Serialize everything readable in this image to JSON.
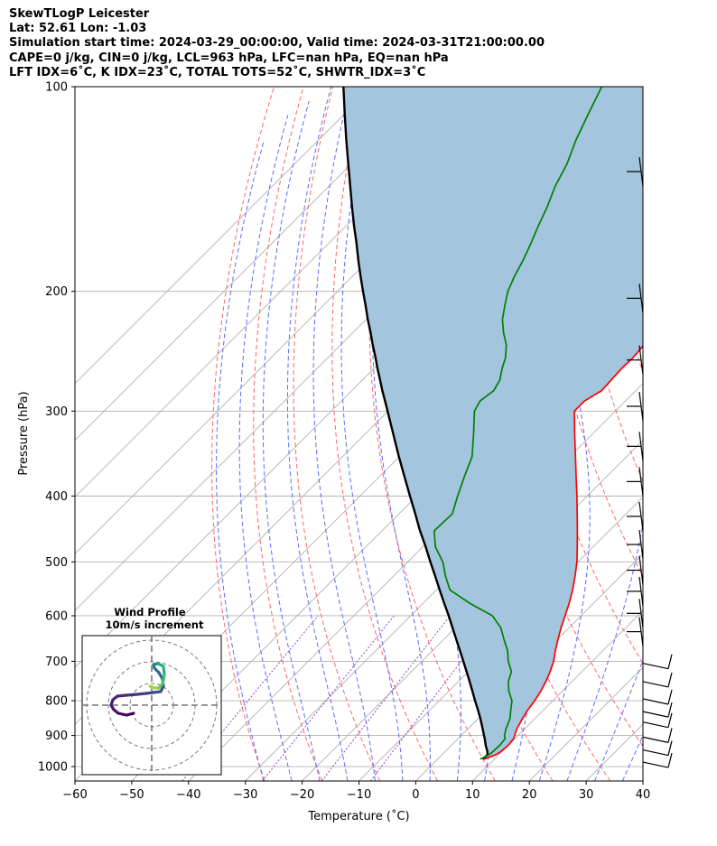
{
  "title_lines": [
    "SkewTLogP Leicester",
    "Lat: 52.61   Lon: -1.03",
    "Simulation start time: 2024-03-29_00:00:00, Valid time: 2024-03-31T21:00:00.00",
    "CAPE=0 j/kg, CIN=0 j/kg, LCL=963 hPa, LFC=nan hPa, EQ=nan hPa",
    "LFT IDX=6˚C, K IDX=23˚C, TOTAL TOTS=52˚C, SHWTR_IDX=3˚C"
  ],
  "colors": {
    "temperature": "#ff0000",
    "dewpoint": "#008000",
    "parcel": "#000000",
    "cape_fill": "#a3c5de",
    "isotherm": "#b0b0b0",
    "dry_adiabat": "#ff6666",
    "moist_adiabat": "#5a6cff",
    "mixing_ratio": "#9a40c8"
  },
  "chart_data": {
    "type": "line",
    "skew": "skew-T log-P",
    "xlabel": "Temperature (˚C)",
    "ylabel": "Pressure (hPa)",
    "xlim": [
      -60,
      40
    ],
    "ylim": [
      1050,
      100
    ],
    "y_scale": "log",
    "grid": true,
    "x_ticks": [
      -60,
      -50,
      -40,
      -30,
      -20,
      -10,
      0,
      10,
      20,
      30,
      40
    ],
    "x_tick_labels": [
      "−60",
      "−50",
      "−40",
      "−30",
      "−20",
      "−10",
      "0",
      "10",
      "20",
      "30",
      "40"
    ],
    "y_ticks": [
      100,
      200,
      300,
      400,
      500,
      600,
      700,
      800,
      900,
      1000
    ],
    "y_tick_labels": [
      "100",
      "200",
      "300",
      "400",
      "500",
      "600",
      "700",
      "800",
      "900",
      "1000"
    ],
    "series": [
      {
        "key": "temperature",
        "pressure": [
          975,
          960,
          950,
          930,
          910,
          900,
          880,
          850,
          825,
          800,
          775,
          750,
          725,
          700,
          675,
          650,
          625,
          600,
          575,
          550,
          525,
          500,
          475,
          450,
          425,
          400,
          375,
          350,
          325,
          300,
          290,
          280,
          270,
          260,
          250,
          240,
          230,
          220,
          210,
          200,
          190,
          180,
          170,
          160,
          150,
          140,
          130,
          120,
          110,
          100
        ],
        "values": [
          8.2,
          9.5,
          9.8,
          10.0,
          9.8,
          9.4,
          8.6,
          7.8,
          7.2,
          6.8,
          6.2,
          5.4,
          4.4,
          3.2,
          1.6,
          0.1,
          -1.4,
          -2.8,
          -4.3,
          -6.0,
          -8.0,
          -10.2,
          -12.8,
          -15.6,
          -18.6,
          -21.8,
          -25.3,
          -29.0,
          -33.0,
          -37.2,
          -37.2,
          -36.0,
          -36.2,
          -36.4,
          -36.3,
          -36.6,
          -36.8,
          -37.6,
          -39.0,
          -40.2,
          -40.8,
          -41.6,
          -43.2,
          -45.4,
          -47.8,
          -49.0,
          -51.0,
          -54.0,
          -57.0,
          -60.0
        ]
      },
      {
        "key": "dewpoint",
        "pressure": [
          975,
          960,
          950,
          930,
          910,
          900,
          880,
          850,
          825,
          800,
          775,
          750,
          725,
          700,
          675,
          650,
          625,
          600,
          575,
          550,
          525,
          500,
          475,
          450,
          425,
          400,
          375,
          350,
          325,
          300,
          290,
          280,
          270,
          260,
          250,
          240,
          230,
          220,
          210,
          200,
          190,
          180,
          170,
          160,
          150,
          140,
          130,
          120,
          110,
          100
        ],
        "values": [
          7.5,
          8.3,
          8.4,
          8.5,
          8.3,
          7.6,
          6.7,
          5.6,
          4.2,
          2.8,
          0.6,
          -1.2,
          -2.4,
          -4.8,
          -6.8,
          -9.4,
          -12.0,
          -15.6,
          -21.8,
          -27.6,
          -30.8,
          -33.8,
          -37.8,
          -40.8,
          -40.6,
          -42.8,
          -45.0,
          -47.2,
          -50.8,
          -54.8,
          -55.6,
          -55.0,
          -55.8,
          -57.4,
          -58.8,
          -60.8,
          -63.5,
          -66.0,
          -68.0,
          -70.0,
          -71.5,
          -72.8,
          -74.4,
          -76.2,
          -78.0,
          -80.2,
          -82.0,
          -84.6,
          -87.0,
          -89.5
        ]
      },
      {
        "key": "parcel",
        "pressure": [
          975,
          960,
          950,
          930,
          910,
          900,
          880,
          850,
          825,
          800,
          775,
          750,
          725,
          700,
          675,
          650,
          625,
          600,
          575,
          550,
          525,
          500,
          475,
          450,
          425,
          400,
          375,
          350,
          325,
          300,
          290,
          280,
          270,
          260,
          250,
          240,
          230,
          220,
          210,
          200,
          190,
          180,
          170,
          160,
          150,
          140,
          130,
          120,
          110,
          100
        ],
        "values": [
          8.0,
          8.0,
          7.4,
          6.0,
          4.7,
          4.0,
          2.6,
          0.4,
          -1.6,
          -3.7,
          -5.8,
          -8.0,
          -10.3,
          -12.7,
          -15.2,
          -17.8,
          -20.5,
          -23.3,
          -26.3,
          -29.4,
          -32.6,
          -36.0,
          -39.5,
          -43.3,
          -47.1,
          -51.2,
          -55.5,
          -60.1,
          -64.9,
          -70.1,
          -72.3,
          -74.6,
          -76.9,
          -79.3,
          -81.7,
          -84.3,
          -86.9,
          -89.7,
          -92.5,
          -95.5,
          -98.6,
          -101.8,
          -105.1,
          -108.7,
          -112.4,
          -116.3,
          -120.5,
          -125.0,
          -129.8,
          -135.0
        ]
      }
    ],
    "inset": {
      "title": "Wind Profile",
      "subtitle": "10m/s increment",
      "ring_speeds": [
        10,
        20,
        30
      ]
    }
  }
}
